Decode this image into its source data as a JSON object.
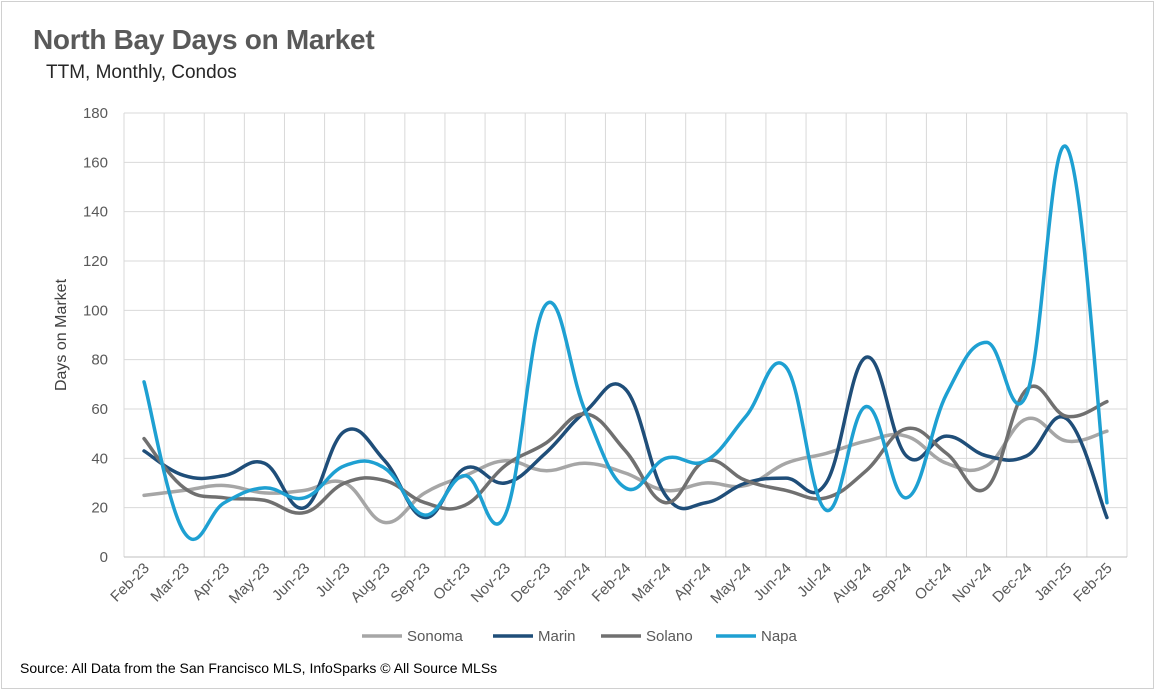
{
  "header": {
    "title": "North Bay Days on Market",
    "subtitle": "TTM, Monthly, Condos"
  },
  "footer": {
    "source": "Source: All Data from the San Francisco MLS, InfoSparks © All Source MLSs"
  },
  "chart_data": {
    "type": "line",
    "title": "North Bay Days on Market",
    "subtitle": "TTM, Monthly, Condos",
    "xlabel": "",
    "ylabel": "Days on Market",
    "ylim": [
      0,
      180
    ],
    "yticks": [
      0,
      20,
      40,
      60,
      80,
      100,
      120,
      140,
      160,
      180
    ],
    "grid": true,
    "legend_position": "bottom",
    "categories": [
      "Feb-23",
      "Mar-23",
      "Apr-23",
      "May-23",
      "Jun-23",
      "Jul-23",
      "Aug-23",
      "Sep-23",
      "Oct-23",
      "Nov-23",
      "Dec-23",
      "Jan-24",
      "Feb-24",
      "Mar-24",
      "Apr-24",
      "May-24",
      "Jun-24",
      "Jul-24",
      "Aug-24",
      "Sep-24",
      "Oct-24",
      "Nov-24",
      "Dec-24",
      "Jan-25",
      "Feb-25"
    ],
    "series": [
      {
        "name": "Sonoma",
        "color": "#a6a6a6",
        "values": [
          25,
          27,
          29,
          26,
          27,
          30,
          14,
          26,
          33,
          39,
          35,
          38,
          34,
          27,
          30,
          29,
          38,
          42,
          47,
          49,
          38,
          37,
          56,
          47,
          51
        ]
      },
      {
        "name": "Marin",
        "color": "#1f4e79",
        "values": [
          43,
          33,
          33,
          38,
          20,
          51,
          39,
          16,
          36,
          30,
          42,
          59,
          68,
          25,
          22,
          30,
          32,
          30,
          81,
          41,
          49,
          41,
          41,
          56,
          16
        ]
      },
      {
        "name": "Solano",
        "color": "#707070",
        "values": [
          48,
          28,
          24,
          23,
          18,
          30,
          31,
          22,
          21,
          37,
          46,
          58,
          43,
          22,
          39,
          31,
          27,
          24,
          35,
          52,
          42,
          28,
          68,
          57,
          63
        ]
      },
      {
        "name": "Napa",
        "color": "#1ea0d2",
        "values": [
          71,
          10,
          22,
          28,
          24,
          37,
          36,
          17,
          33,
          17,
          102,
          59,
          28,
          40,
          39,
          57,
          77,
          19,
          61,
          24,
          66,
          87,
          66,
          166,
          22
        ]
      }
    ]
  }
}
